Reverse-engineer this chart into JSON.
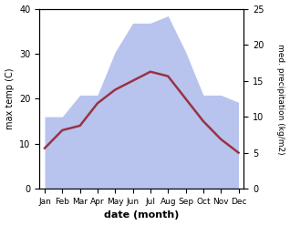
{
  "months": [
    "Jan",
    "Feb",
    "Mar",
    "Apr",
    "May",
    "Jun",
    "Jul",
    "Aug",
    "Sep",
    "Oct",
    "Nov",
    "Dec"
  ],
  "temperature": [
    9,
    13,
    14,
    19,
    22,
    24,
    26,
    25,
    20,
    15,
    11,
    8
  ],
  "precipitation": [
    10,
    10,
    13,
    13,
    19,
    23,
    23,
    24,
    19,
    13,
    13,
    12
  ],
  "temp_color": "#993344",
  "precip_fill_color": "#b8c4ee",
  "xlabel": "date (month)",
  "ylabel_left": "max temp (C)",
  "ylabel_right": "med. precipitation (kg/m2)",
  "ylim_left": [
    0,
    40
  ],
  "ylim_right": [
    0,
    25
  ],
  "yticks_left": [
    0,
    10,
    20,
    30,
    40
  ],
  "yticks_right": [
    0,
    5,
    10,
    15,
    20,
    25
  ],
  "bg_color": "#ffffff"
}
